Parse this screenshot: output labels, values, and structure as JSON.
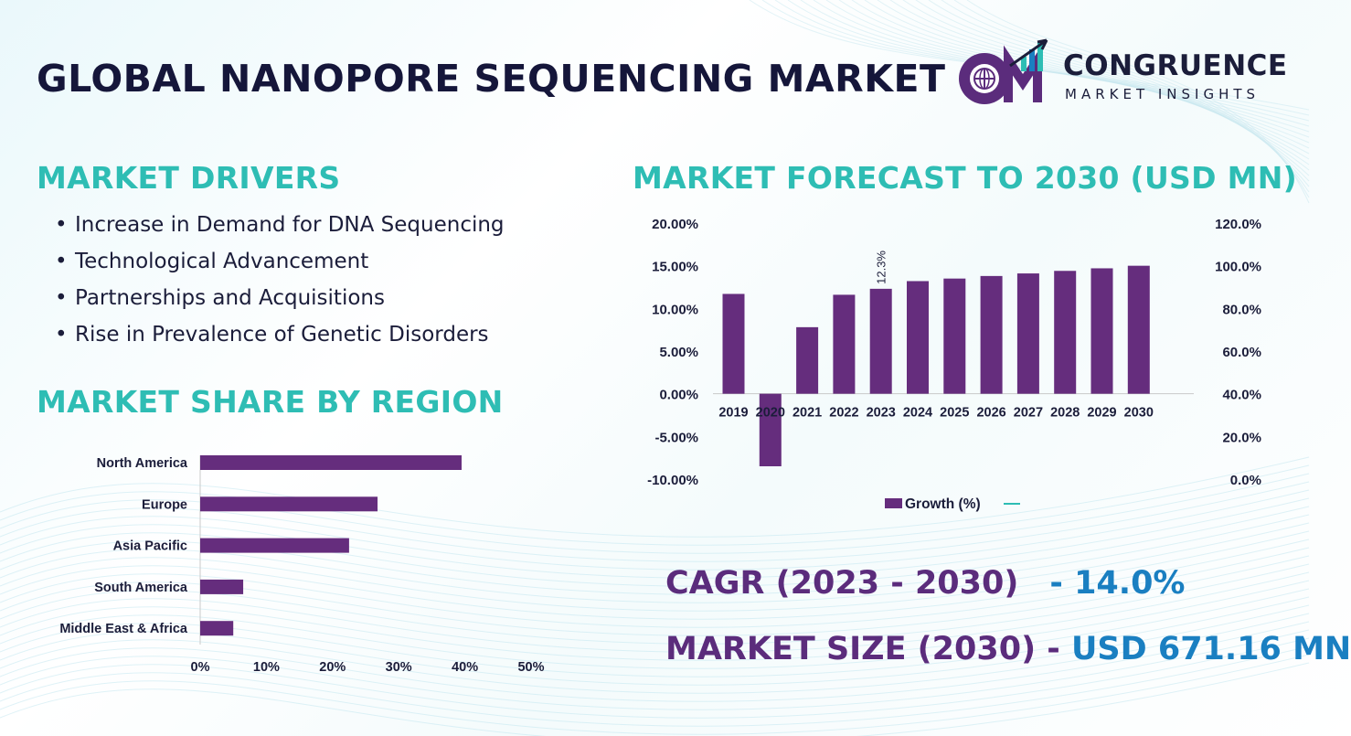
{
  "title": "GLOBAL NANOPORE SEQUENCING MARKET",
  "logo": {
    "name": "CONGRUENCE",
    "tagline": "MARKET INSIGHTS",
    "colors": [
      "#5b2c7c",
      "#2ebdb4",
      "#1a7fc1"
    ]
  },
  "drivers": {
    "heading": "MARKET DRIVERS",
    "items": [
      "Increase in Demand for DNA Sequencing",
      "Technological Advancement",
      "Partnerships and Acquisitions",
      "Rise in Prevalence of Genetic Disorders"
    ]
  },
  "region": {
    "heading": "MARKET SHARE BY REGION"
  },
  "forecast": {
    "heading": "MARKET FORECAST TO 2030 (USD MN)"
  },
  "stats": {
    "cagr_label": "CAGR (2023 - 2030)",
    "cagr_value": "- 14.0%",
    "size_label": "MARKET SIZE (2030) -",
    "size_value": "USD 671.16 MN"
  },
  "colors": {
    "accent": "#2ebdb4",
    "bar": "#652d7d",
    "value_blue": "#1a7fc1",
    "label_purple": "#5b2c7c"
  },
  "chart_data": [
    {
      "type": "bar",
      "orientation": "horizontal",
      "categories": [
        "North America",
        "Europe",
        "Asia Pacific",
        "South America",
        "Middle East & Africa"
      ],
      "values": [
        39.5,
        26.8,
        22.5,
        6.5,
        5.0
      ],
      "xticks": [
        "0%",
        "10%",
        "20%",
        "30%",
        "40%",
        "50%"
      ],
      "xlim": [
        0,
        50
      ],
      "grid": false
    },
    {
      "type": "bar",
      "categories": [
        "2019",
        "2020",
        "2021",
        "2022",
        "2023",
        "2024",
        "2025",
        "2026",
        "2027",
        "2028",
        "2029",
        "2030"
      ],
      "series": [
        {
          "name": "Growth (%)",
          "values": [
            11.7,
            -8.5,
            7.8,
            11.6,
            12.3,
            13.2,
            13.5,
            13.8,
            14.1,
            14.4,
            14.7,
            15.0
          ]
        }
      ],
      "data_labels": [
        {
          "category": "2023",
          "text": "12.3%"
        }
      ],
      "ylim": [
        -10,
        20
      ],
      "yticks_left": [
        "20.00%",
        "15.00%",
        "10.00%",
        "5.00%",
        "0.00%",
        "-5.00%",
        "-10.00%"
      ],
      "ylim_right": [
        0,
        120
      ],
      "yticks_right": [
        "120.0%",
        "100.0%",
        "80.0%",
        "60.0%",
        "40.0%",
        "20.0%",
        "0.0%"
      ],
      "legend": {
        "position": "bottom",
        "entries": [
          "Growth (%)",
          ""
        ]
      },
      "grid": false
    }
  ]
}
